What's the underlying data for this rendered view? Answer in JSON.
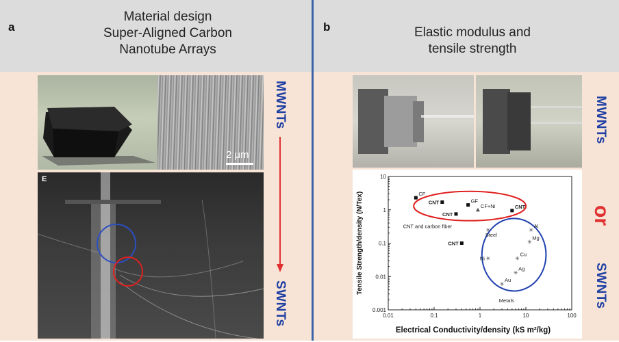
{
  "panel_a": {
    "letter": "a",
    "title_lines": [
      "Material design",
      "Super-Aligned Carbon",
      "Nanotube Arrays"
    ],
    "scale_bar": "2 μm",
    "inset_label": "E",
    "side_top": "MWNTs",
    "side_bottom": "SWNTs"
  },
  "panel_b": {
    "letter": "b",
    "title_lines": [
      "Elastic modulus and",
      "tensile strength"
    ],
    "side_top": "MWNTs",
    "or_label": "or",
    "side_bottom": "SWNTs"
  },
  "colors": {
    "header_bg": "#dcdcdc",
    "body_bg": "#f7e4d6",
    "divider": "#3b63a8",
    "label_blue": "#1f3fa3",
    "arrow_red": "#e03030"
  },
  "chart_data": {
    "type": "scatter",
    "xlabel": "Electrical Conductivity/density (kS m²/kg)",
    "ylabel": "Tensile Strength/density (N/Tex)",
    "xscale": "log",
    "yscale": "log",
    "xlim": [
      0.01,
      100
    ],
    "ylim": [
      0.001,
      10
    ],
    "xticks": [
      "0.01",
      "0.1",
      "1",
      "10",
      "100"
    ],
    "yticks": [
      "0.001",
      "0.01",
      "0.1",
      "1",
      "10"
    ],
    "points": [
      {
        "label": "CF",
        "x": 0.04,
        "y": 2.3,
        "marker": "square",
        "bold": false
      },
      {
        "label": "CNT",
        "x": 0.15,
        "y": 1.7,
        "marker": "square",
        "bold": true
      },
      {
        "label": "CNT",
        "x": 0.3,
        "y": 0.75,
        "marker": "square",
        "bold": true
      },
      {
        "label": "GF",
        "x": 0.55,
        "y": 1.4,
        "marker": "square",
        "bold": false
      },
      {
        "label": "CF+Ni",
        "x": 0.9,
        "y": 1.0,
        "marker": "triangle",
        "bold": false
      },
      {
        "label": "CNT",
        "x": 5.0,
        "y": 0.95,
        "marker": "square",
        "bold": true
      },
      {
        "label": "CNT",
        "x": 0.4,
        "y": 0.1,
        "marker": "square",
        "bold": true
      },
      {
        "label": "Steel",
        "x": 1.5,
        "y": 0.25,
        "marker": "star",
        "bold": false
      },
      {
        "label": "Al",
        "x": 13,
        "y": 0.25,
        "marker": "star",
        "bold": false
      },
      {
        "label": "Mg",
        "x": 12,
        "y": 0.11,
        "marker": "star",
        "bold": false
      },
      {
        "label": "Ni",
        "x": 1.5,
        "y": 0.035,
        "marker": "star",
        "bold": false
      },
      {
        "label": "Cu",
        "x": 6.5,
        "y": 0.035,
        "marker": "star",
        "bold": false
      },
      {
        "label": "Ag",
        "x": 6.0,
        "y": 0.013,
        "marker": "star",
        "bold": false
      },
      {
        "label": "Au",
        "x": 3.0,
        "y": 0.006,
        "marker": "star",
        "bold": false
      }
    ],
    "annotations": [
      "CNT and carbon fiber",
      "Metals"
    ],
    "ellipses": [
      {
        "group": "CNT and carbon fiber",
        "color": "#e02020"
      },
      {
        "group": "Metals",
        "color": "#2040b0"
      }
    ]
  }
}
